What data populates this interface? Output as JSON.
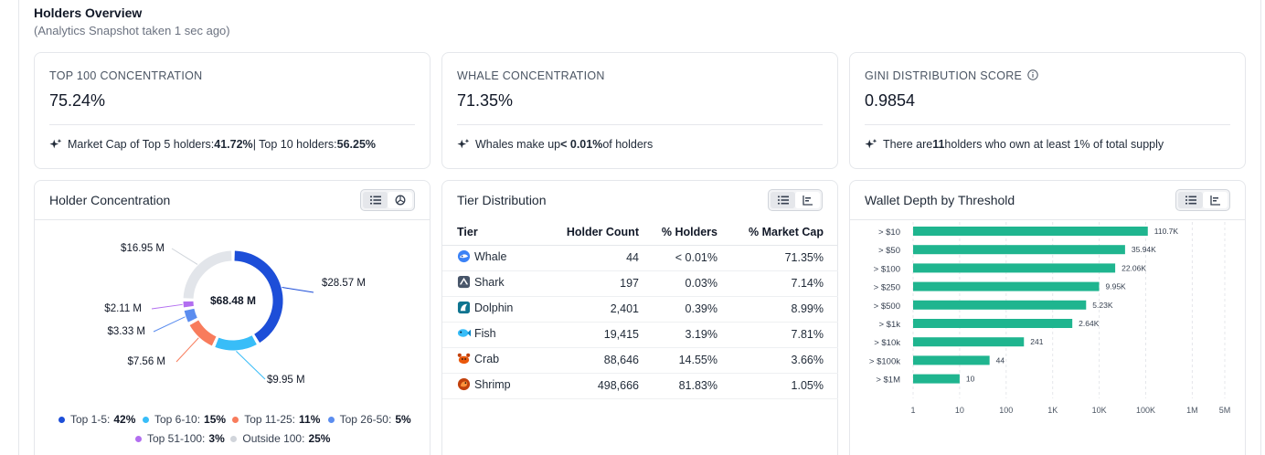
{
  "header": {
    "title": "Holders Overview",
    "subtitle": "(Analytics Snapshot taken 1 sec ago)"
  },
  "stats": [
    {
      "label": "TOP 100 CONCENTRATION",
      "value": "75.24%",
      "note": {
        "t1": "Market Cap of Top 5 holders: ",
        "b1": "41.72%",
        "t2": " | Top 10 holders: ",
        "b2": "56.25%",
        "t3": ""
      }
    },
    {
      "label": "WHALE CONCENTRATION",
      "value": "71.35%",
      "note": {
        "t1": "Whales make up ",
        "b1": "< 0.01%",
        "t2": " of holders",
        "b2": "",
        "t3": ""
      }
    },
    {
      "label": "GINI DISTRIBUTION SCORE",
      "value": "0.9854",
      "note": {
        "t1": "There are ",
        "b1": "11",
        "t2": " holders who own at least 1% of total supply",
        "b2": "",
        "t3": ""
      }
    }
  ],
  "holder_concentration": {
    "title": "Holder Concentration",
    "center_label": "$68.48 M",
    "slices": [
      {
        "name": "Top 1-5",
        "pct": 42,
        "pct_label": "42%",
        "amount": "$28.57 M",
        "color": "#1d4ed8"
      },
      {
        "name": "Top 6-10",
        "pct": 15,
        "pct_label": "15%",
        "amount": "$9.95 M",
        "color": "#38bdf8"
      },
      {
        "name": "Top 11-25",
        "pct": 11,
        "pct_label": "11%",
        "amount": "$7.56 M",
        "color": "#f87c5c"
      },
      {
        "name": "Top 26-50",
        "pct": 5,
        "pct_label": "5%",
        "amount": "$3.33 M",
        "color": "#5b8def"
      },
      {
        "name": "Top 51-100",
        "pct": 3,
        "pct_label": "3%",
        "amount": "$2.11 M",
        "color": "#b26ef0"
      },
      {
        "name": "Outside 100",
        "pct": 25,
        "pct_label": "25%",
        "amount": "$16.95 M",
        "color": "#e2e5ea"
      }
    ]
  },
  "tier_distribution": {
    "title": "Tier Distribution",
    "columns": [
      "Tier",
      "Holder Count",
      "% Holders",
      "% Market Cap"
    ],
    "rows": [
      {
        "tier": "Whale",
        "icon": "whale-icon",
        "count": "44",
        "holders": "< 0.01%",
        "mcap": "71.35%"
      },
      {
        "tier": "Shark",
        "icon": "shark-icon",
        "count": "197",
        "holders": "0.03%",
        "mcap": "7.14%"
      },
      {
        "tier": "Dolphin",
        "icon": "dolphin-icon",
        "count": "2,401",
        "holders": "0.39%",
        "mcap": "8.99%"
      },
      {
        "tier": "Fish",
        "icon": "fish-icon",
        "count": "19,415",
        "holders": "3.19%",
        "mcap": "7.81%"
      },
      {
        "tier": "Crab",
        "icon": "crab-icon",
        "count": "88,646",
        "holders": "14.55%",
        "mcap": "3.66%"
      },
      {
        "tier": "Shrimp",
        "icon": "shrimp-icon",
        "count": "498,666",
        "holders": "81.83%",
        "mcap": "1.05%"
      }
    ]
  },
  "wallet_depth": {
    "title": "Wallet Depth by Threshold"
  },
  "chart_data": {
    "type": "bar",
    "orientation": "horizontal",
    "categories": [
      "> $10",
      "> $50",
      "> $100",
      "> $250",
      "> $500",
      "> $1k",
      "> $10k",
      "> $100k",
      "> $1M"
    ],
    "values": [
      110700,
      35940,
      22060,
      9950,
      5230,
      2640,
      241,
      44,
      10
    ],
    "value_labels": [
      "110.7K",
      "35.94K",
      "22.06K",
      "9.95K",
      "5.23K",
      "2.64K",
      "241",
      "44",
      "10"
    ],
    "x_scale": "log",
    "x_ticks": [
      "1",
      "10",
      "100",
      "1K",
      "10K",
      "100K",
      "1M",
      "5M"
    ],
    "x_tick_values": [
      1,
      10,
      100,
      1000,
      10000,
      100000,
      1000000,
      5000000
    ],
    "color": "#1fb58f",
    "grid": "vertical dashed"
  }
}
